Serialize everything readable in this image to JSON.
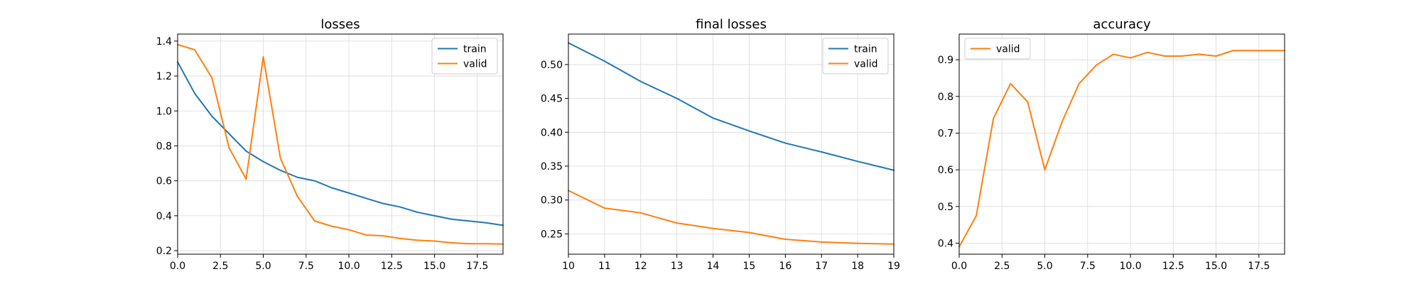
{
  "colors": {
    "train": "#1f77b4",
    "valid": "#ff7f0e"
  },
  "chart_data": [
    {
      "type": "line",
      "title": "losses",
      "xlabel": "",
      "ylabel": "",
      "xlim": [
        0,
        19
      ],
      "ylim": [
        0.18,
        1.44
      ],
      "xticks": [
        0,
        2.5,
        5,
        7.5,
        10,
        12.5,
        15,
        17.5
      ],
      "xtick_labels": [
        "0.0",
        "2.5",
        "5.0",
        "7.5",
        "10.0",
        "12.5",
        "15.0",
        "17.5"
      ],
      "yticks": [
        0.2,
        0.4,
        0.6,
        0.8,
        1.0,
        1.2,
        1.4
      ],
      "ytick_labels": [
        "0.2",
        "0.4",
        "0.6",
        "0.8",
        "1.0",
        "1.2",
        "1.4"
      ],
      "grid": true,
      "legend": "top-right",
      "x": [
        0,
        1,
        2,
        3,
        4,
        5,
        6,
        7,
        8,
        9,
        10,
        11,
        12,
        13,
        14,
        15,
        16,
        17,
        18,
        19
      ],
      "series": [
        {
          "name": "train",
          "color": "#1f77b4",
          "values": [
            1.28,
            1.1,
            0.97,
            0.87,
            0.77,
            0.71,
            0.66,
            0.62,
            0.6,
            0.56,
            0.53,
            0.5,
            0.47,
            0.45,
            0.42,
            0.4,
            0.38,
            0.37,
            0.36,
            0.345
          ]
        },
        {
          "name": "valid",
          "color": "#ff7f0e",
          "values": [
            1.38,
            1.35,
            1.19,
            0.79,
            0.61,
            1.31,
            0.73,
            0.51,
            0.37,
            0.34,
            0.32,
            0.29,
            0.285,
            0.27,
            0.26,
            0.255,
            0.245,
            0.24,
            0.24,
            0.238
          ]
        }
      ]
    },
    {
      "type": "line",
      "title": "final losses",
      "xlabel": "",
      "ylabel": "",
      "xlim": [
        10,
        19
      ],
      "ylim": [
        0.22,
        0.545
      ],
      "xticks": [
        10,
        11,
        12,
        13,
        14,
        15,
        16,
        17,
        18,
        19
      ],
      "xtick_labels": [
        "10",
        "11",
        "12",
        "13",
        "14",
        "15",
        "16",
        "17",
        "18",
        "19"
      ],
      "yticks": [
        0.25,
        0.3,
        0.35,
        0.4,
        0.45,
        0.5
      ],
      "ytick_labels": [
        "0.25",
        "0.30",
        "0.35",
        "0.40",
        "0.45",
        "0.50"
      ],
      "grid": true,
      "legend": "top-right",
      "x": [
        10,
        11,
        12,
        13,
        14,
        15,
        16,
        17,
        18,
        19
      ],
      "series": [
        {
          "name": "train",
          "color": "#1f77b4",
          "values": [
            0.532,
            0.505,
            0.475,
            0.45,
            0.421,
            0.402,
            0.384,
            0.371,
            0.357,
            0.344
          ]
        },
        {
          "name": "valid",
          "color": "#ff7f0e",
          "values": [
            0.314,
            0.288,
            0.281,
            0.266,
            0.258,
            0.252,
            0.242,
            0.238,
            0.236,
            0.235
          ]
        }
      ]
    },
    {
      "type": "line",
      "title": "accuracy",
      "xlabel": "",
      "ylabel": "",
      "xlim": [
        0,
        19
      ],
      "ylim": [
        0.37,
        0.97
      ],
      "xticks": [
        0,
        2.5,
        5,
        7.5,
        10,
        12.5,
        15,
        17.5
      ],
      "xtick_labels": [
        "0.0",
        "2.5",
        "5.0",
        "7.5",
        "10.0",
        "12.5",
        "15.0",
        "17.5"
      ],
      "yticks": [
        0.4,
        0.5,
        0.6,
        0.7,
        0.8,
        0.9
      ],
      "ytick_labels": [
        "0.4",
        "0.5",
        "0.6",
        "0.7",
        "0.8",
        "0.9"
      ],
      "grid": true,
      "legend": "top-left",
      "x": [
        0,
        1,
        2,
        3,
        4,
        5,
        6,
        7,
        8,
        9,
        10,
        11,
        12,
        13,
        14,
        15,
        16,
        17,
        18,
        19
      ],
      "series": [
        {
          "name": "valid",
          "color": "#ff7f0e",
          "values": [
            0.39,
            0.475,
            0.74,
            0.835,
            0.785,
            0.6,
            0.73,
            0.835,
            0.885,
            0.915,
            0.905,
            0.92,
            0.91,
            0.91,
            0.915,
            0.91,
            0.925,
            0.925,
            0.925,
            0.925
          ]
        }
      ]
    }
  ]
}
